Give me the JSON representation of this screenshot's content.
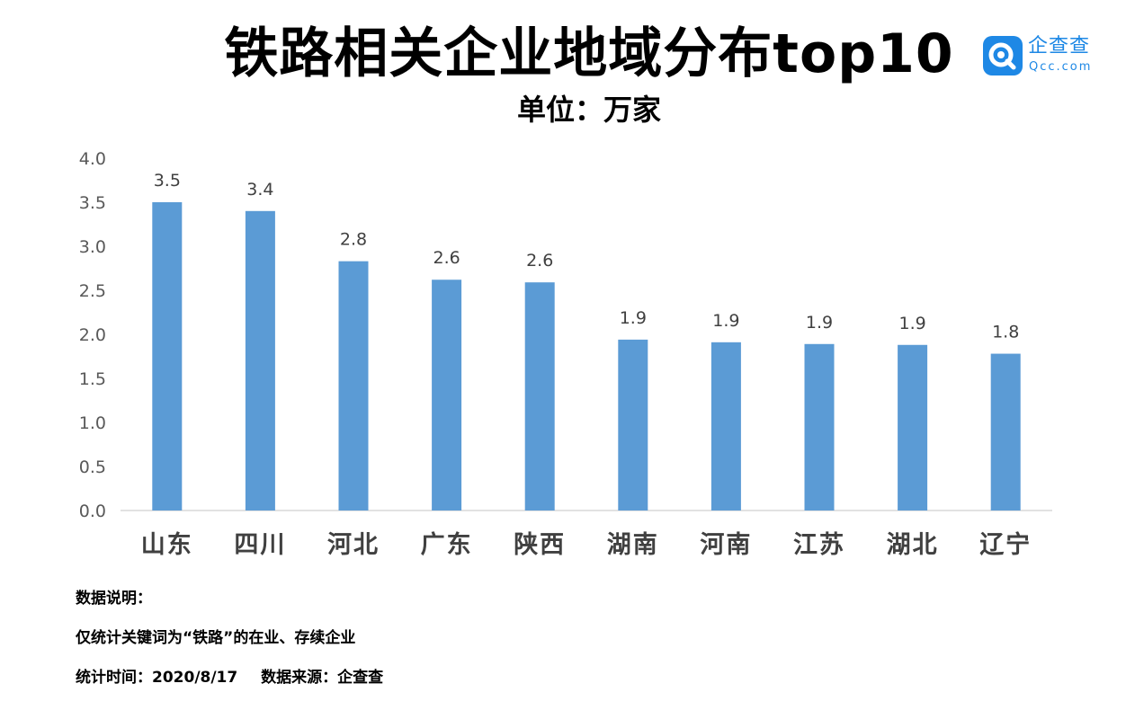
{
  "header": {
    "title": "铁路相关企业地域分布top10",
    "subtitle": "单位：万家"
  },
  "logo": {
    "name": "企查查",
    "domain": "Qcc.com",
    "icon": "qcc-logo-icon",
    "color": "#1e88e5"
  },
  "chart_data": {
    "type": "bar",
    "title": "铁路相关企业地域分布top10",
    "subtitle": "单位：万家",
    "xlabel": "",
    "ylabel": "",
    "categories": [
      "山东",
      "四川",
      "河北",
      "广东",
      "陕西",
      "湖南",
      "河南",
      "江苏",
      "湖北",
      "辽宁"
    ],
    "values": [
      3.5,
      3.4,
      2.8,
      2.6,
      2.6,
      1.9,
      1.9,
      1.9,
      1.9,
      1.8
    ],
    "heights": [
      3.5,
      3.4,
      2.83,
      2.62,
      2.59,
      1.94,
      1.91,
      1.89,
      1.88,
      1.78
    ],
    "data_labels": [
      "3.5",
      "3.4",
      "2.8",
      "2.6",
      "2.6",
      "1.9",
      "1.9",
      "1.9",
      "1.9",
      "1.8"
    ],
    "ylim": [
      0,
      4
    ],
    "yticks": [
      "0.0",
      "0.5",
      "1.0",
      "1.5",
      "2.0",
      "2.5",
      "3.0",
      "3.5",
      "4.0"
    ],
    "grid": false,
    "legend": "none",
    "bar_color": "#5b9bd5",
    "axis_color": "#d9d9d9"
  },
  "notes": {
    "heading": "数据说明：",
    "scope": "仅统计关键词为“铁路”的在业、存续企业",
    "stat_time": "统计时间：2020/8/17",
    "source": "数据来源：企查查"
  }
}
